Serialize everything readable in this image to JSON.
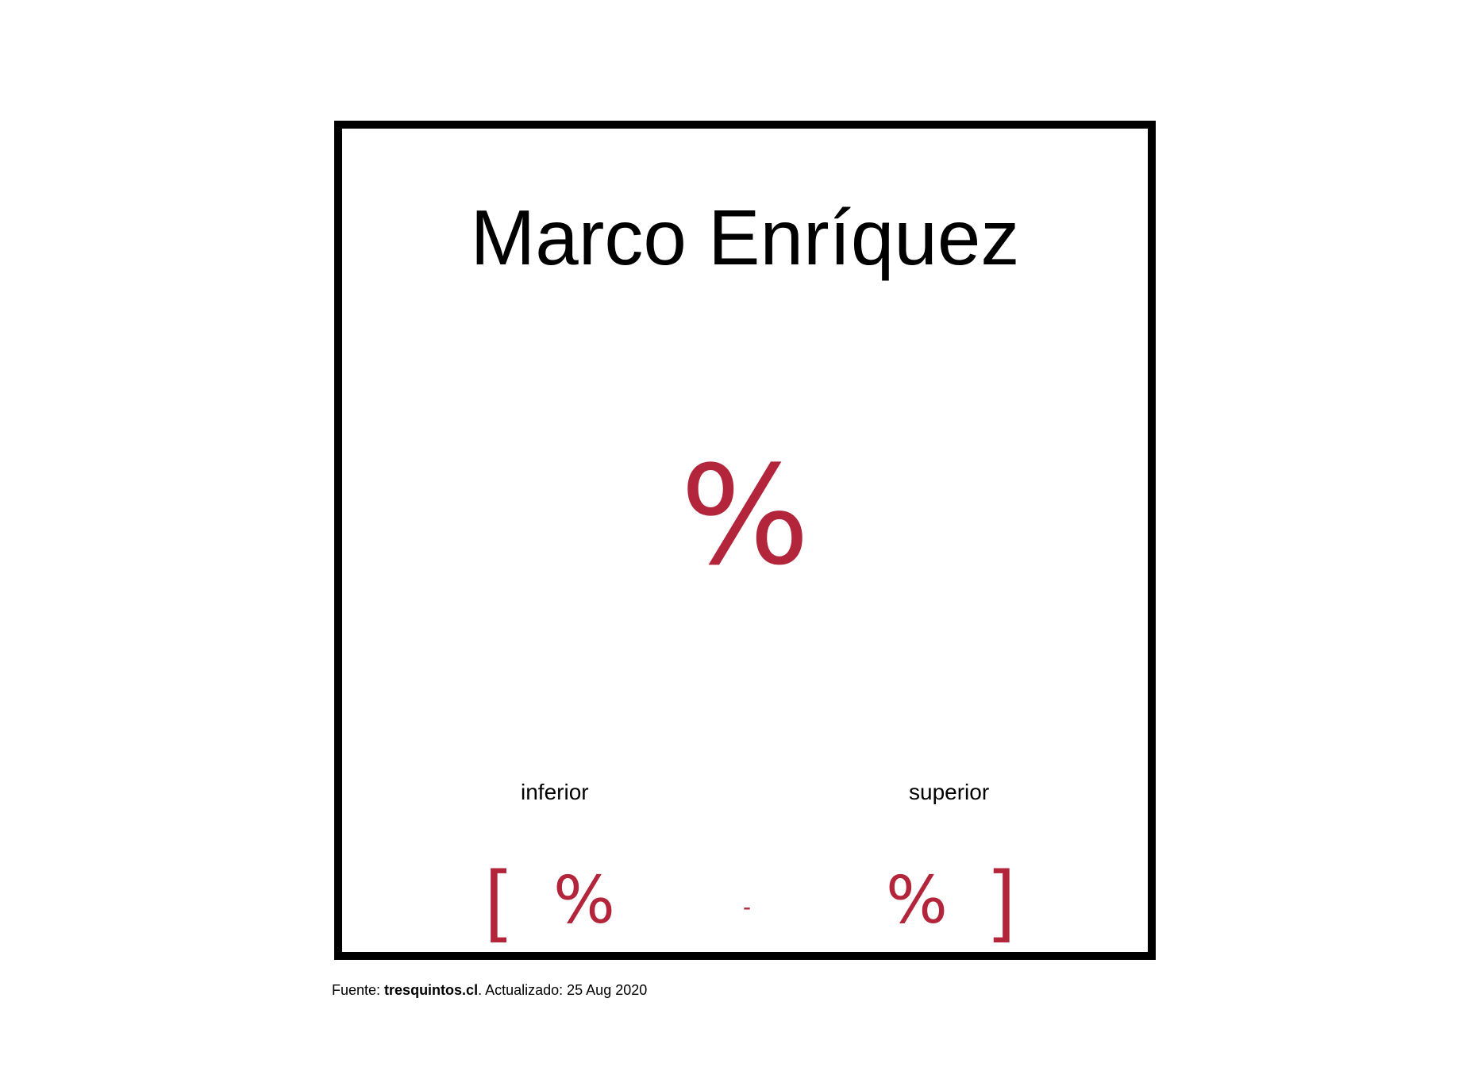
{
  "card": {
    "title": "Marco Enríquez",
    "main_value": "%",
    "lower_label": "inferior",
    "upper_label": "superior",
    "bracket_open": "[",
    "lower_value": "%",
    "separator": "-",
    "upper_value": "%",
    "bracket_close": "]"
  },
  "footer": {
    "source_prefix": "Fuente: ",
    "source_name": "tresquintos.cl",
    "updated_text": ". Actualizado: 25 Aug 2020"
  },
  "colors": {
    "accent": "#b2253b",
    "text": "#000000",
    "border": "#000000"
  }
}
